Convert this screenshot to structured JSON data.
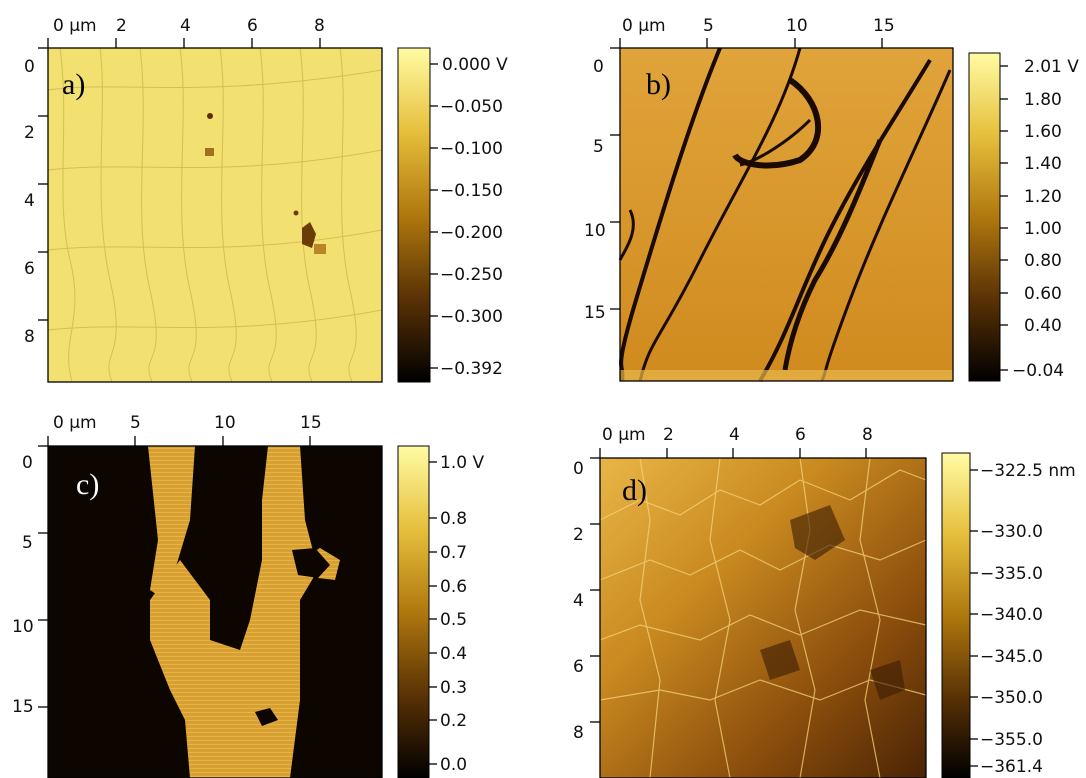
{
  "panels": [
    {
      "id": "a",
      "label": "a)",
      "x_ticks": [
        "0 µm",
        "2",
        "4",
        "6",
        "8"
      ],
      "y_ticks": [
        "0",
        "2",
        "4",
        "6",
        "8"
      ],
      "colorbar_ticks": [
        "0.000 V",
        "−0.050",
        "−0.100",
        "−0.150",
        "−0.200",
        "−0.250",
        "−0.300",
        "−0.392"
      ]
    },
    {
      "id": "b",
      "label": "b)",
      "x_ticks": [
        "0 µm",
        "5",
        "10",
        "15"
      ],
      "y_ticks": [
        "0",
        "5",
        "10",
        "15"
      ],
      "colorbar_ticks": [
        "2.01 V",
        "1.80",
        "1.60",
        "1.40",
        "1.20",
        "1.00",
        "0.80",
        "0.60",
        "0.40",
        "−0.04"
      ]
    },
    {
      "id": "c",
      "label": "c)",
      "x_ticks": [
        "0 µm",
        "5",
        "10",
        "15"
      ],
      "y_ticks": [
        "0",
        "5",
        "10",
        "15"
      ],
      "colorbar_ticks": [
        "1.0 V",
        "0.8",
        "0.7",
        "0.6",
        "0.5",
        "0.4",
        "0.3",
        "0.2",
        "0.0"
      ]
    },
    {
      "id": "d",
      "label": "d)",
      "x_ticks": [
        "0 µm",
        "2",
        "4",
        "6",
        "8"
      ],
      "y_ticks": [
        "0",
        "2",
        "4",
        "6",
        "8"
      ],
      "colorbar_ticks": [
        "−322.5 nm",
        "−330.0",
        "−335.0",
        "−340.0",
        "−345.0",
        "−350.0",
        "−355.0",
        "−361.4"
      ]
    }
  ],
  "colors": {
    "bright": "#fff59a",
    "mid": "#c08a18",
    "dark": "#000000"
  }
}
